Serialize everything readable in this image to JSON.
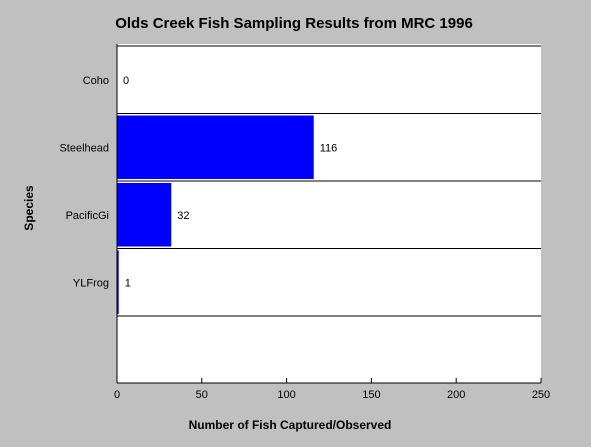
{
  "chart_data": {
    "type": "bar",
    "orientation": "horizontal",
    "title": "Olds Creek Fish Sampling Results from MRC 1996",
    "xlabel": "Number of Fish Captured/Observed",
    "ylabel": "Species",
    "categories": [
      "Coho",
      "Steelhead",
      "PacificGi",
      "YLFrog"
    ],
    "values": [
      0,
      116,
      32,
      1
    ],
    "data_labels": [
      "0",
      "116",
      "32",
      "1"
    ],
    "xlim": [
      0,
      250
    ],
    "x_ticks": [
      0,
      50,
      100,
      150,
      200,
      250
    ],
    "x_tick_labels": [
      "0",
      "50",
      "100",
      "150",
      "200",
      "250"
    ],
    "horizontal_separators": true,
    "legend": "none"
  },
  "colors": {
    "background": "#c0c0c0",
    "plot_background": "#ffffff",
    "bar": "#0000ff",
    "text": "#000000",
    "lines": "#000000"
  }
}
